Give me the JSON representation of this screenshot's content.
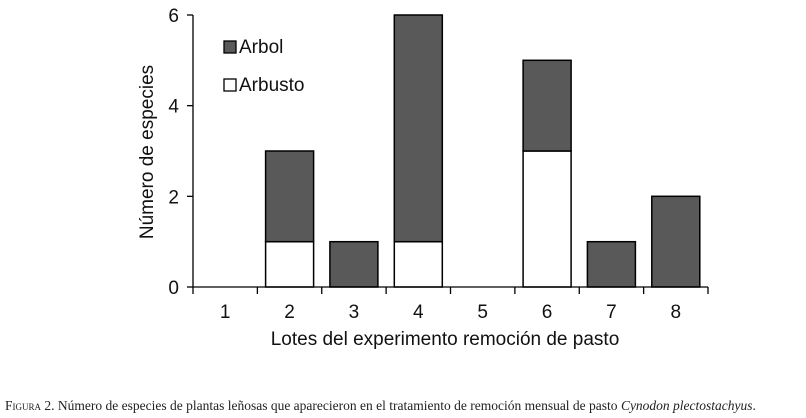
{
  "chart_data": {
    "type": "bar",
    "stacked": true,
    "categories": [
      "1",
      "2",
      "3",
      "4",
      "5",
      "6",
      "7",
      "8"
    ],
    "series": [
      {
        "name": "Arbusto",
        "color": "#ffffff",
        "values": [
          0,
          1,
          0,
          1,
          0,
          3,
          0,
          0
        ]
      },
      {
        "name": "Arbol",
        "color": "#595959",
        "values": [
          0,
          2,
          1,
          5,
          0,
          2,
          1,
          2
        ]
      }
    ],
    "xlabel": "Lotes del experimento remoción de pasto",
    "ylabel": "Número  de especies",
    "ylim": [
      0,
      6
    ],
    "yticks": [
      "0",
      "2",
      "4",
      "6"
    ],
    "grid": false,
    "legend_position": "top-left",
    "legend_order": [
      "Arbol",
      "Arbusto"
    ]
  },
  "caption": {
    "label": "Figura 2.",
    "text": " Número de especies de plantas leñosas que aparecieron en el tratamiento de remoción mensual de pasto ",
    "species": "Cynodon plectostachyus",
    "end": "."
  }
}
